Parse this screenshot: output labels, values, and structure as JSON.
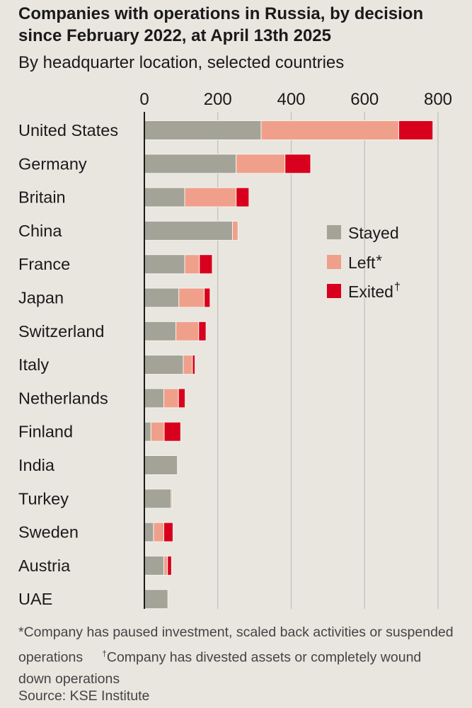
{
  "chart_data": {
    "type": "bar",
    "stacked": true,
    "orientation": "horizontal",
    "title": "Companies with operations in Russia, by decision since February 2022, at April 13th 2025",
    "subtitle": "By headquarter location, selected countries",
    "xlim": [
      0,
      800
    ],
    "xticks": [
      "0",
      "200",
      "400",
      "600",
      "800"
    ],
    "tick_values": [
      0,
      200,
      400,
      600,
      800
    ],
    "grid": true,
    "legend_position": "right",
    "categories": [
      "United States",
      "Germany",
      "Britain",
      "China",
      "France",
      "Japan",
      "Switzerland",
      "Italy",
      "Netherlands",
      "Finland",
      "India",
      "Turkey",
      "Sweden",
      "Austria",
      "UAE"
    ],
    "series": [
      {
        "name": "Stayed",
        "legend_mark": "",
        "color": "#a4a398",
        "values": [
          318,
          250,
          110,
          240,
          110,
          94,
          86,
          106,
          53,
          18,
          90,
          73,
          25,
          53,
          64
        ]
      },
      {
        "name": "Left",
        "legend_mark": "*",
        "color": "#f0a08a",
        "values": [
          375,
          133,
          140,
          15,
          40,
          69,
          62,
          25,
          40,
          36,
          0,
          3,
          28,
          10,
          0
        ]
      },
      {
        "name": "Exited",
        "legend_mark": "†",
        "color": "#d8001c",
        "values": [
          93,
          70,
          35,
          0,
          35,
          16,
          20,
          7,
          18,
          45,
          0,
          0,
          25,
          11,
          0
        ]
      }
    ]
  },
  "footnote": {
    "left_mark": "*",
    "left_text": "Company has paused investment, scaled back activities or suspended operations",
    "exited_mark": "†",
    "exited_text": "Company has divested assets or completely wound down operations"
  },
  "source": "Source: KSE Institute"
}
